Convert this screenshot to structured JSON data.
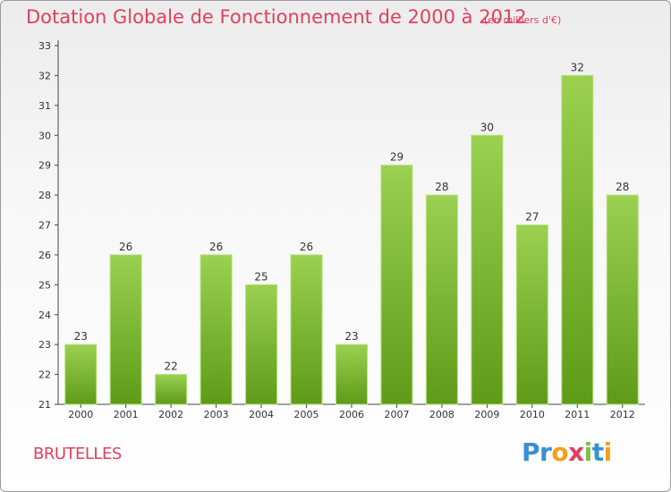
{
  "header": {
    "title": "Dotation Globale de Fonctionnement de 2000 à 2012",
    "subtitle": "(en milliers d'€)"
  },
  "footer": {
    "commune": "BRUTELLES",
    "brand_letters": [
      {
        "char": "P",
        "color": "#3a8fd0"
      },
      {
        "char": "r",
        "color": "#3a8fd0"
      },
      {
        "char": "o",
        "color": "#f0a020"
      },
      {
        "char": "x",
        "color": "#e04060"
      },
      {
        "char": "i",
        "color": "#7cc142"
      },
      {
        "char": "t",
        "color": "#3a8fd0"
      },
      {
        "char": "i",
        "color": "#f0a020"
      }
    ]
  },
  "colors": {
    "accent": "#e04060",
    "bar_light": "#9bd050",
    "bar_dark": "#5e9b18",
    "axis": "#444444",
    "grid": "#dddddd"
  },
  "chart_data": {
    "type": "bar",
    "title": "Dotation Globale de Fonctionnement de 2000 à 2012",
    "subtitle": "(en milliers d'€)",
    "xlabel": "",
    "ylabel": "",
    "categories": [
      "2000",
      "2001",
      "2002",
      "2003",
      "2004",
      "2005",
      "2006",
      "2007",
      "2008",
      "2009",
      "2010",
      "2011",
      "2012"
    ],
    "values": [
      23,
      26,
      22,
      26,
      25,
      26,
      23,
      29,
      28,
      30,
      27,
      32,
      28
    ],
    "data_labels": [
      "23",
      "26",
      "22",
      "26",
      "25",
      "26",
      "23",
      "29",
      "28",
      "30",
      "27",
      "32",
      "28"
    ],
    "ylim": [
      21,
      33
    ],
    "yticks": [
      21,
      22,
      23,
      24,
      25,
      26,
      27,
      28,
      29,
      30,
      31,
      32,
      33
    ],
    "grid": false,
    "legend": "none"
  }
}
